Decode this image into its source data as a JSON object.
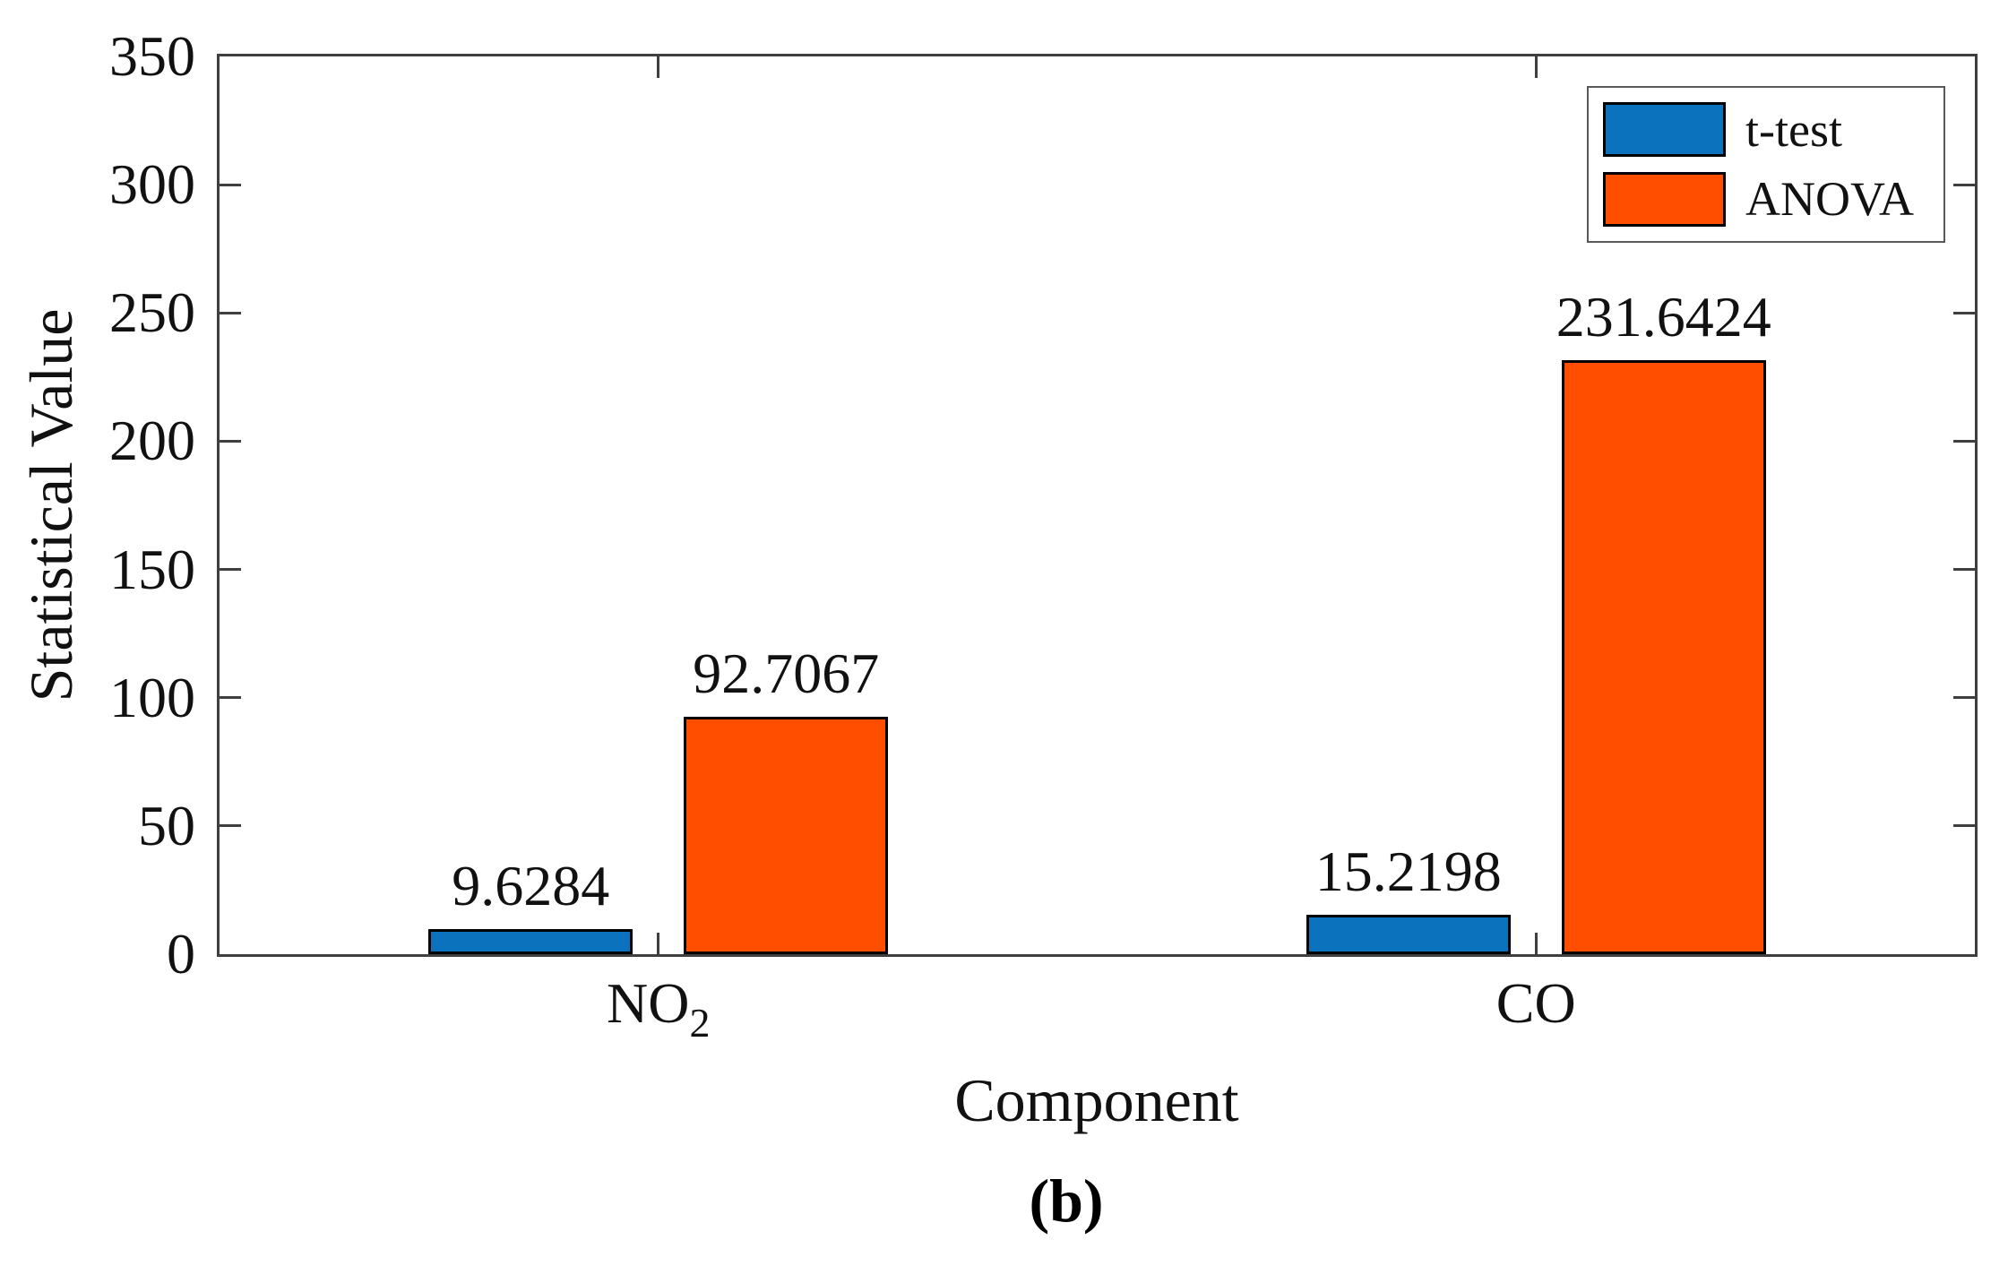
{
  "figure": {
    "caption": "(b)"
  },
  "chart_data": {
    "type": "bar",
    "title": "",
    "xlabel": "Component",
    "ylabel": "Statistical Value",
    "categories": [
      {
        "label": "NO",
        "subscript": "2"
      },
      {
        "label": "CO",
        "subscript": ""
      }
    ],
    "series": [
      {
        "name": "t-test",
        "color": "#0B72BD",
        "values": [
          9.6284,
          15.2198
        ],
        "value_labels": [
          "9.6284",
          "15.2198"
        ]
      },
      {
        "name": "ANOVA",
        "color": "#FF4E00",
        "values": [
          92.7067,
          231.6424
        ],
        "value_labels": [
          "92.7067",
          "231.6424"
        ]
      }
    ],
    "ylim": [
      0,
      350
    ],
    "yticks": [
      0,
      50,
      100,
      150,
      200,
      250,
      300,
      350
    ],
    "grid": false,
    "legend_position": "top-right",
    "axis_color": "#3f3f3f",
    "bar_edge_color": "#000000"
  }
}
